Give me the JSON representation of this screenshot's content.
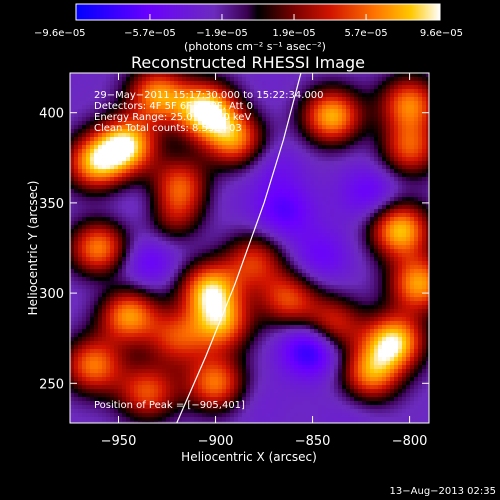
{
  "chart_data": {
    "type": "heatmap",
    "title": "Reconstructed RHESSI Image",
    "xlabel": "Heliocentric X (arcsec)",
    "ylabel": "Heliocentric Y (arcsec)",
    "xlim": [
      -975,
      -790
    ],
    "ylim": [
      228,
      422
    ],
    "xticks": [
      -950,
      -900,
      -850,
      -800
    ],
    "xtick_labels": [
      "−950",
      "−900",
      "−850",
      "−800"
    ],
    "yticks": [
      250,
      300,
      350,
      400
    ],
    "ytick_labels": [
      "250",
      "300",
      "350",
      "400"
    ],
    "colorbar": {
      "ticks": [
        -9.6e-05,
        -5.7e-05,
        -1.9e-05,
        1.9e-05,
        5.7e-05,
        9.6e-05
      ],
      "tick_labels": [
        "−9.6e−05",
        "−5.7e−05",
        "−1.9e−05",
        "1.9e−05",
        "5.7e−05",
        "9.6e−05"
      ],
      "range": [
        -9.6e-05,
        9.6e-05
      ],
      "unit_label": "(photons cm⁻² s⁻¹ asec⁻²)",
      "colors": [
        "#0000ff",
        "#6a00ff",
        "#6c2bbd",
        "#3a0050",
        "#000000",
        "#7a0000",
        "#d21400",
        "#ff7300",
        "#ffc800",
        "#ffffff"
      ]
    },
    "annotations": [
      "29−May−2011 15:17:30.000 to 15:22:34.000",
      "Detectors: 4F 5F 6F 7F 8F, Att 0",
      "Energy Range: 25.0 − 50.0 keV",
      "Clean     Total counts: 8.55E+03"
    ],
    "peak_label": "Position of Peak = [−905,401]",
    "peak": [
      -905,
      401
    ],
    "limb_curve": [
      [
        -920,
        228
      ],
      [
        -905,
        265
      ],
      [
        -890,
        305
      ],
      [
        -875,
        350
      ],
      [
        -865,
        385
      ],
      [
        -856,
        422
      ]
    ],
    "blobs": [
      {
        "x": -946,
        "y": 382,
        "v": 8.5e-05
      },
      {
        "x": -962,
        "y": 372,
        "v": 7e-05
      },
      {
        "x": -930,
        "y": 410,
        "v": 6.5e-05
      },
      {
        "x": -905,
        "y": 401,
        "v": 9.6e-05
      },
      {
        "x": -890,
        "y": 385,
        "v": 6e-05
      },
      {
        "x": -918,
        "y": 360,
        "v": 5e-05
      },
      {
        "x": -960,
        "y": 325,
        "v": 6.5e-05
      },
      {
        "x": -920,
        "y": 340,
        "v": 4.5e-05
      },
      {
        "x": -903,
        "y": 302,
        "v": 7.5e-05
      },
      {
        "x": -897,
        "y": 283,
        "v": 6e-05
      },
      {
        "x": -920,
        "y": 275,
        "v": 4e-05
      },
      {
        "x": -945,
        "y": 288,
        "v": 7e-05
      },
      {
        "x": -963,
        "y": 260,
        "v": 6e-05
      },
      {
        "x": -935,
        "y": 245,
        "v": 5e-05
      },
      {
        "x": -900,
        "y": 250,
        "v": 6e-05
      },
      {
        "x": -862,
        "y": 297,
        "v": 5.5e-05
      },
      {
        "x": -880,
        "y": 318,
        "v": 4e-05
      },
      {
        "x": -840,
        "y": 282,
        "v": 5e-05
      },
      {
        "x": -840,
        "y": 398,
        "v": 7.5e-05
      },
      {
        "x": -800,
        "y": 405,
        "v": 6e-05
      },
      {
        "x": -805,
        "y": 335,
        "v": 8e-05
      },
      {
        "x": -795,
        "y": 305,
        "v": 7e-05
      },
      {
        "x": -808,
        "y": 273,
        "v": 8.5e-05
      },
      {
        "x": -820,
        "y": 255,
        "v": 6e-05
      },
      {
        "x": -800,
        "y": 380,
        "v": 5e-05
      },
      {
        "x": -955,
        "y": 300,
        "v": -3.5e-05
      },
      {
        "x": -935,
        "y": 317,
        "v": -6e-05
      },
      {
        "x": -917,
        "y": 336,
        "v": -5.5e-05
      },
      {
        "x": -935,
        "y": 350,
        "v": -4e-05
      },
      {
        "x": -902,
        "y": 356,
        "v": -3.5e-05
      },
      {
        "x": -870,
        "y": 370,
        "v": -4.5e-05
      },
      {
        "x": -865,
        "y": 345,
        "v": -6.5e-05
      },
      {
        "x": -846,
        "y": 320,
        "v": -5.5e-05
      },
      {
        "x": -858,
        "y": 300,
        "v": -3.5e-05
      },
      {
        "x": -850,
        "y": 270,
        "v": -9.6e-05
      },
      {
        "x": -820,
        "y": 355,
        "v": -6e-05
      },
      {
        "x": -830,
        "y": 233,
        "v": -3.5e-05
      },
      {
        "x": -880,
        "y": 240,
        "v": -3.5e-05
      },
      {
        "x": -960,
        "y": 345,
        "v": -3e-05
      },
      {
        "x": -873,
        "y": 410,
        "v": -3e-05
      },
      {
        "x": -818,
        "y": 385,
        "v": -3e-05
      },
      {
        "x": -965,
        "y": 235,
        "v": -2.5e-05
      }
    ]
  },
  "footer": {
    "timestamp": "13−Aug−2013 02:35"
  },
  "colors": {
    "background": "#000000",
    "text": "#ffffff",
    "limb": "#ffffff"
  }
}
